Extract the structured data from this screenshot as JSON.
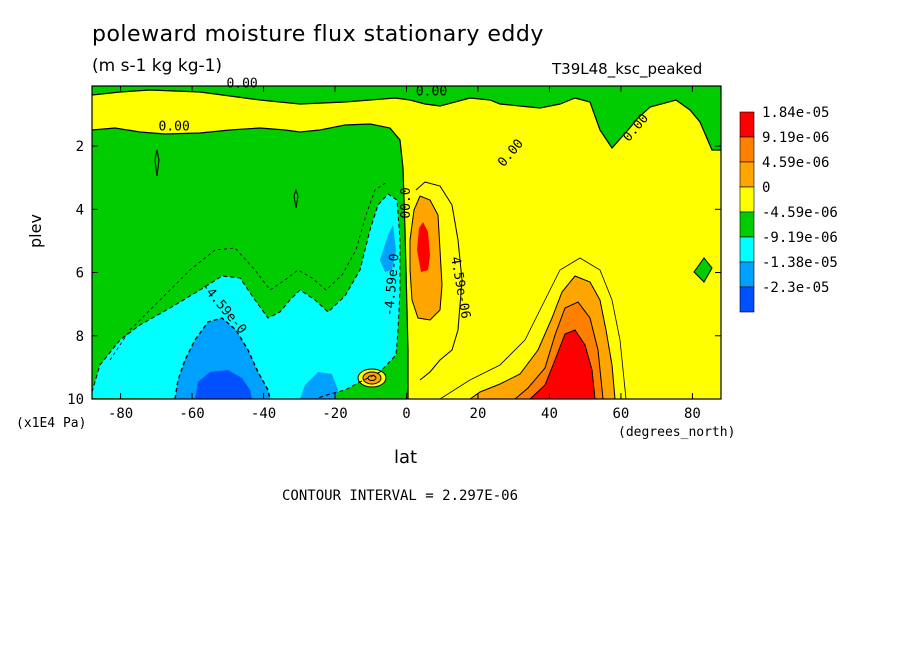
{
  "chart_data": {
    "type": "contour",
    "title": "poleward moisture flux stationary eddy",
    "units": "(m s-1 kg kg-1)",
    "subtitle": "T39L48_ksc_peaked",
    "xlabel": "lat",
    "xunit": "(degrees_north)",
    "ylabel": "plev",
    "yunit": "(x1E4 Pa)",
    "contour_interval": "CONTOUR INTERVAL = 2.297E-06",
    "xlim": [
      -88,
      88
    ],
    "ylim": [
      0.1,
      10
    ],
    "y_inverted": true,
    "xticks": [
      "-80",
      "-60",
      "-40",
      "-20",
      "0",
      "20",
      "40",
      "60",
      "80"
    ],
    "xtick_values": [
      -80,
      -60,
      -40,
      -20,
      0,
      20,
      40,
      60,
      80
    ],
    "yticks": [
      "2",
      "4",
      "6",
      "8",
      "10"
    ],
    "ytick_values": [
      2,
      4,
      6,
      8,
      10
    ],
    "legend": [
      {
        "label": "1.84e-05",
        "color": "#ff0000"
      },
      {
        "label": "9.19e-06",
        "color": "#ff7f00"
      },
      {
        "label": "4.59e-06",
        "color": "#ffa500"
      },
      {
        "label": "0",
        "color": "#ffff00"
      },
      {
        "label": "-4.59e-06",
        "color": "#00cc00"
      },
      {
        "label": "-9.19e-06",
        "color": "#00ffff"
      },
      {
        "label": "-1.38e-05",
        "color": "#00a0ff"
      },
      {
        "label": "-2.3e-05",
        "color": "#0050ff"
      }
    ],
    "contour_labels": [
      {
        "text": "0.00",
        "lat": -46,
        "plev": 0.15
      },
      {
        "text": "0.00",
        "lat": 7,
        "plev": 0.4
      },
      {
        "text": "0.00",
        "lat": -65,
        "plev": 1.5
      },
      {
        "text": "0.00",
        "lat": 30,
        "plev": 2.3
      },
      {
        "text": "0.00",
        "lat": 65,
        "plev": 1.5
      },
      {
        "text": "-4.59e-0",
        "lat": -52,
        "plev": 7.2
      },
      {
        "text": "-4.59e-0",
        "lat": -3,
        "plev": 6.4
      },
      {
        "text": "00.0",
        "lat": 1,
        "plev": 3.8
      },
      {
        "text": "4.59e-06",
        "lat": 14,
        "plev": 6.5
      }
    ]
  }
}
